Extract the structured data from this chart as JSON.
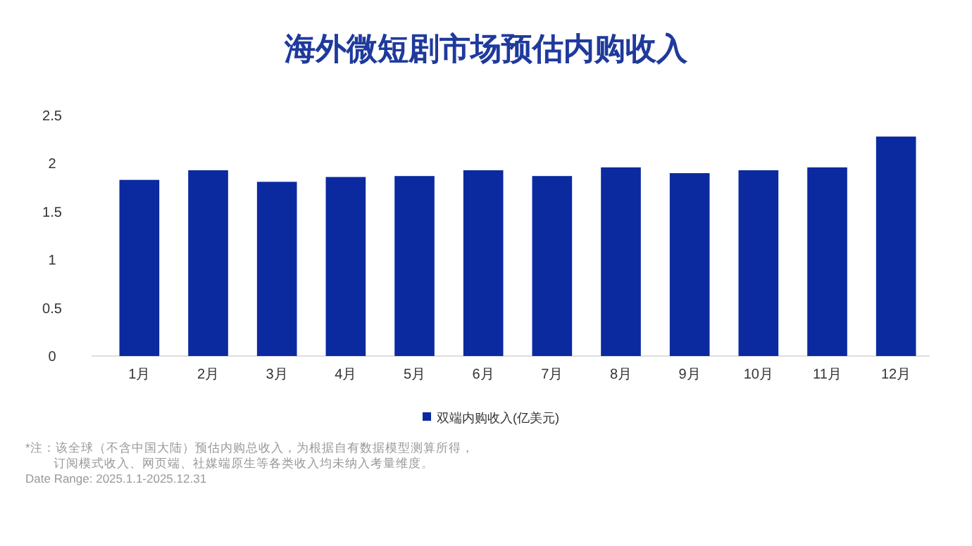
{
  "chart_data": {
    "type": "bar",
    "title": "海外微短剧市场预估内购收入",
    "categories": [
      "1月",
      "2月",
      "3月",
      "4月",
      "5月",
      "6月",
      "7月",
      "8月",
      "9月",
      "10月",
      "11月",
      "12月"
    ],
    "series": [
      {
        "name": "双端内购收入(亿美元)",
        "color": "#0b2aa0",
        "values": [
          1.83,
          1.93,
          1.81,
          1.86,
          1.87,
          1.93,
          1.87,
          1.96,
          1.9,
          1.93,
          1.96,
          2.28
        ]
      }
    ],
    "ylim": [
      0,
      2.5
    ],
    "yticks": [
      0,
      0.5,
      1,
      1.5,
      2,
      2.5
    ],
    "grid": false,
    "legend": "bottom right",
    "annotations": [
      "*注：该全球（不含中国大陆）预估内购总收入，为根据自有数据模型测算所得，",
      "订阅模式收入、网页端、社媒端原生等各类收入均未纳入考量维度。",
      "Date Range: 2025.1.1-2025.12.31"
    ]
  }
}
